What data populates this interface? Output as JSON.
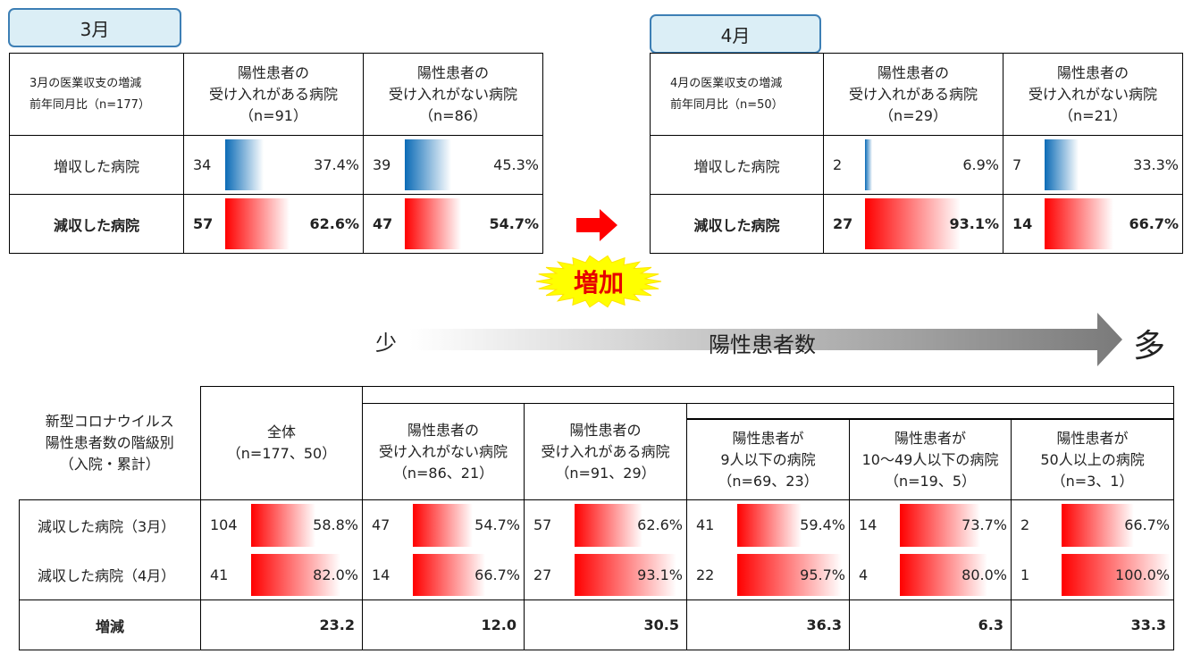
{
  "colors": {
    "increase_bar": "#0b6bb6",
    "decrease_bar": "#ff0000",
    "tag_bg": "#dbeef6",
    "tag_border": "#3d7fb5",
    "arrow_red": "#ff0000",
    "burst": "#ffff00"
  },
  "march": {
    "tag": "3月",
    "corner": [
      "3月の医業収支の増減",
      "前年同月比（n=177）"
    ],
    "headers": [
      [
        "陽性患者の",
        "受け入れがある病院",
        "（n=91）"
      ],
      [
        "陽性患者の",
        "受け入れがない病院",
        "（n=86）"
      ]
    ],
    "rows": [
      {
        "label": "増収した病院",
        "bold": false,
        "color": "blue",
        "cells": [
          {
            "n": "34",
            "pct": 37.4,
            "pct_label": "37.4%"
          },
          {
            "n": "39",
            "pct": 45.3,
            "pct_label": "45.3%"
          }
        ]
      },
      {
        "label": "減収した病院",
        "bold": true,
        "color": "red",
        "cells": [
          {
            "n": "57",
            "pct": 62.6,
            "pct_label": "62.6%"
          },
          {
            "n": "47",
            "pct": 54.7,
            "pct_label": "54.7%"
          }
        ]
      }
    ]
  },
  "april": {
    "tag": "4月",
    "corner": [
      "4月の医業収支の増減",
      "前年同月比（n=50）"
    ],
    "headers": [
      [
        "陽性患者の",
        "受け入れがある病院",
        "（n=29）"
      ],
      [
        "陽性患者の",
        "受け入れがない病院",
        "（n=21）"
      ]
    ],
    "rows": [
      {
        "label": "増収した病院",
        "bold": false,
        "color": "blue",
        "cells": [
          {
            "n": "2",
            "pct": 6.9,
            "pct_label": "6.9%"
          },
          {
            "n": "7",
            "pct": 33.3,
            "pct_label": "33.3%"
          }
        ]
      },
      {
        "label": "減収した病院",
        "bold": true,
        "color": "red",
        "cells": [
          {
            "n": "27",
            "pct": 93.1,
            "pct_label": "93.1%"
          },
          {
            "n": "14",
            "pct": 66.7,
            "pct_label": "66.7%"
          }
        ]
      }
    ]
  },
  "burst_label": "増加",
  "scale": {
    "left": "少",
    "center": "陽性患者数",
    "right": "多"
  },
  "bottom": {
    "corner": [
      "新型コロナウイルス",
      "陽性患者数の階級別",
      "（入院・累計）"
    ],
    "headers": [
      [
        "全体",
        "（n=177、50）"
      ],
      [
        "陽性患者の",
        "受け入れがない病院",
        "（n=86、21）"
      ],
      [
        "陽性患者の",
        "受け入れがある病院",
        "（n=91、29）"
      ],
      [
        "陽性患者が",
        "9人以下の病院",
        "（n=69、23）"
      ],
      [
        "陽性患者が",
        "10～49人以下の病院",
        "（n=19、5）"
      ],
      [
        "陽性患者が",
        "50人以上の病院",
        "（n=3、1）"
      ]
    ],
    "rows": [
      {
        "label": "減収した病院（3月）",
        "cells": [
          {
            "n": "104",
            "pct": 58.8,
            "pct_label": "58.8%"
          },
          {
            "n": "47",
            "pct": 54.7,
            "pct_label": "54.7%"
          },
          {
            "n": "57",
            "pct": 62.6,
            "pct_label": "62.6%"
          },
          {
            "n": "41",
            "pct": 59.4,
            "pct_label": "59.4%"
          },
          {
            "n": "14",
            "pct": 73.7,
            "pct_label": "73.7%"
          },
          {
            "n": "2",
            "pct": 66.7,
            "pct_label": "66.7%"
          }
        ]
      },
      {
        "label": "減収した病院（4月）",
        "cells": [
          {
            "n": "41",
            "pct": 82.0,
            "pct_label": "82.0%"
          },
          {
            "n": "14",
            "pct": 66.7,
            "pct_label": "66.7%"
          },
          {
            "n": "27",
            "pct": 93.1,
            "pct_label": "93.1%"
          },
          {
            "n": "22",
            "pct": 95.7,
            "pct_label": "95.7%"
          },
          {
            "n": "4",
            "pct": 80.0,
            "pct_label": "80.0%"
          },
          {
            "n": "1",
            "pct": 100.0,
            "pct_label": "100.0%"
          }
        ]
      }
    ],
    "diff_label": "増減",
    "diff_values": [
      "23.2",
      "12.0",
      "30.5",
      "36.3",
      "6.3",
      "33.3"
    ]
  },
  "chart_data": [
    {
      "type": "table",
      "title": "3月",
      "series": [
        {
          "name": "増収した病院",
          "categories": [
            "陽性患者の受け入れがある病院",
            "陽性患者の受け入れがない病院"
          ],
          "counts": [
            34,
            39
          ],
          "values": [
            37.4,
            45.3
          ]
        },
        {
          "name": "減収した病院",
          "categories": [
            "陽性患者の受け入れがある病院",
            "陽性患者の受け入れがない病院"
          ],
          "counts": [
            57,
            47
          ],
          "values": [
            62.6,
            54.7
          ]
        }
      ]
    },
    {
      "type": "table",
      "title": "4月",
      "series": [
        {
          "name": "増収した病院",
          "categories": [
            "陽性患者の受け入れがある病院",
            "陽性患者の受け入れがない病院"
          ],
          "counts": [
            2,
            7
          ],
          "values": [
            6.9,
            33.3
          ]
        },
        {
          "name": "減収した病院",
          "categories": [
            "陽性患者の受け入れがある病院",
            "陽性患者の受け入れがない病院"
          ],
          "counts": [
            27,
            14
          ],
          "values": [
            93.1,
            66.7
          ]
        }
      ]
    },
    {
      "type": "table",
      "categories": [
        "全体",
        "陽性患者の受け入れがない病院",
        "陽性患者の受け入れがある病院",
        "陽性患者が9人以下の病院",
        "陽性患者が10～49人以下の病院",
        "陽性患者が50人以上の病院"
      ],
      "series": [
        {
          "name": "減収した病院（3月）",
          "counts": [
            104,
            47,
            57,
            41,
            14,
            2
          ],
          "values": [
            58.8,
            54.7,
            62.6,
            59.4,
            73.7,
            66.7
          ]
        },
        {
          "name": "減収した病院（4月）",
          "counts": [
            41,
            14,
            27,
            22,
            4,
            1
          ],
          "values": [
            82.0,
            66.7,
            93.1,
            95.7,
            80.0,
            100.0
          ]
        },
        {
          "name": "増減",
          "values": [
            23.2,
            12.0,
            30.5,
            36.3,
            6.3,
            33.3
          ]
        }
      ]
    }
  ]
}
